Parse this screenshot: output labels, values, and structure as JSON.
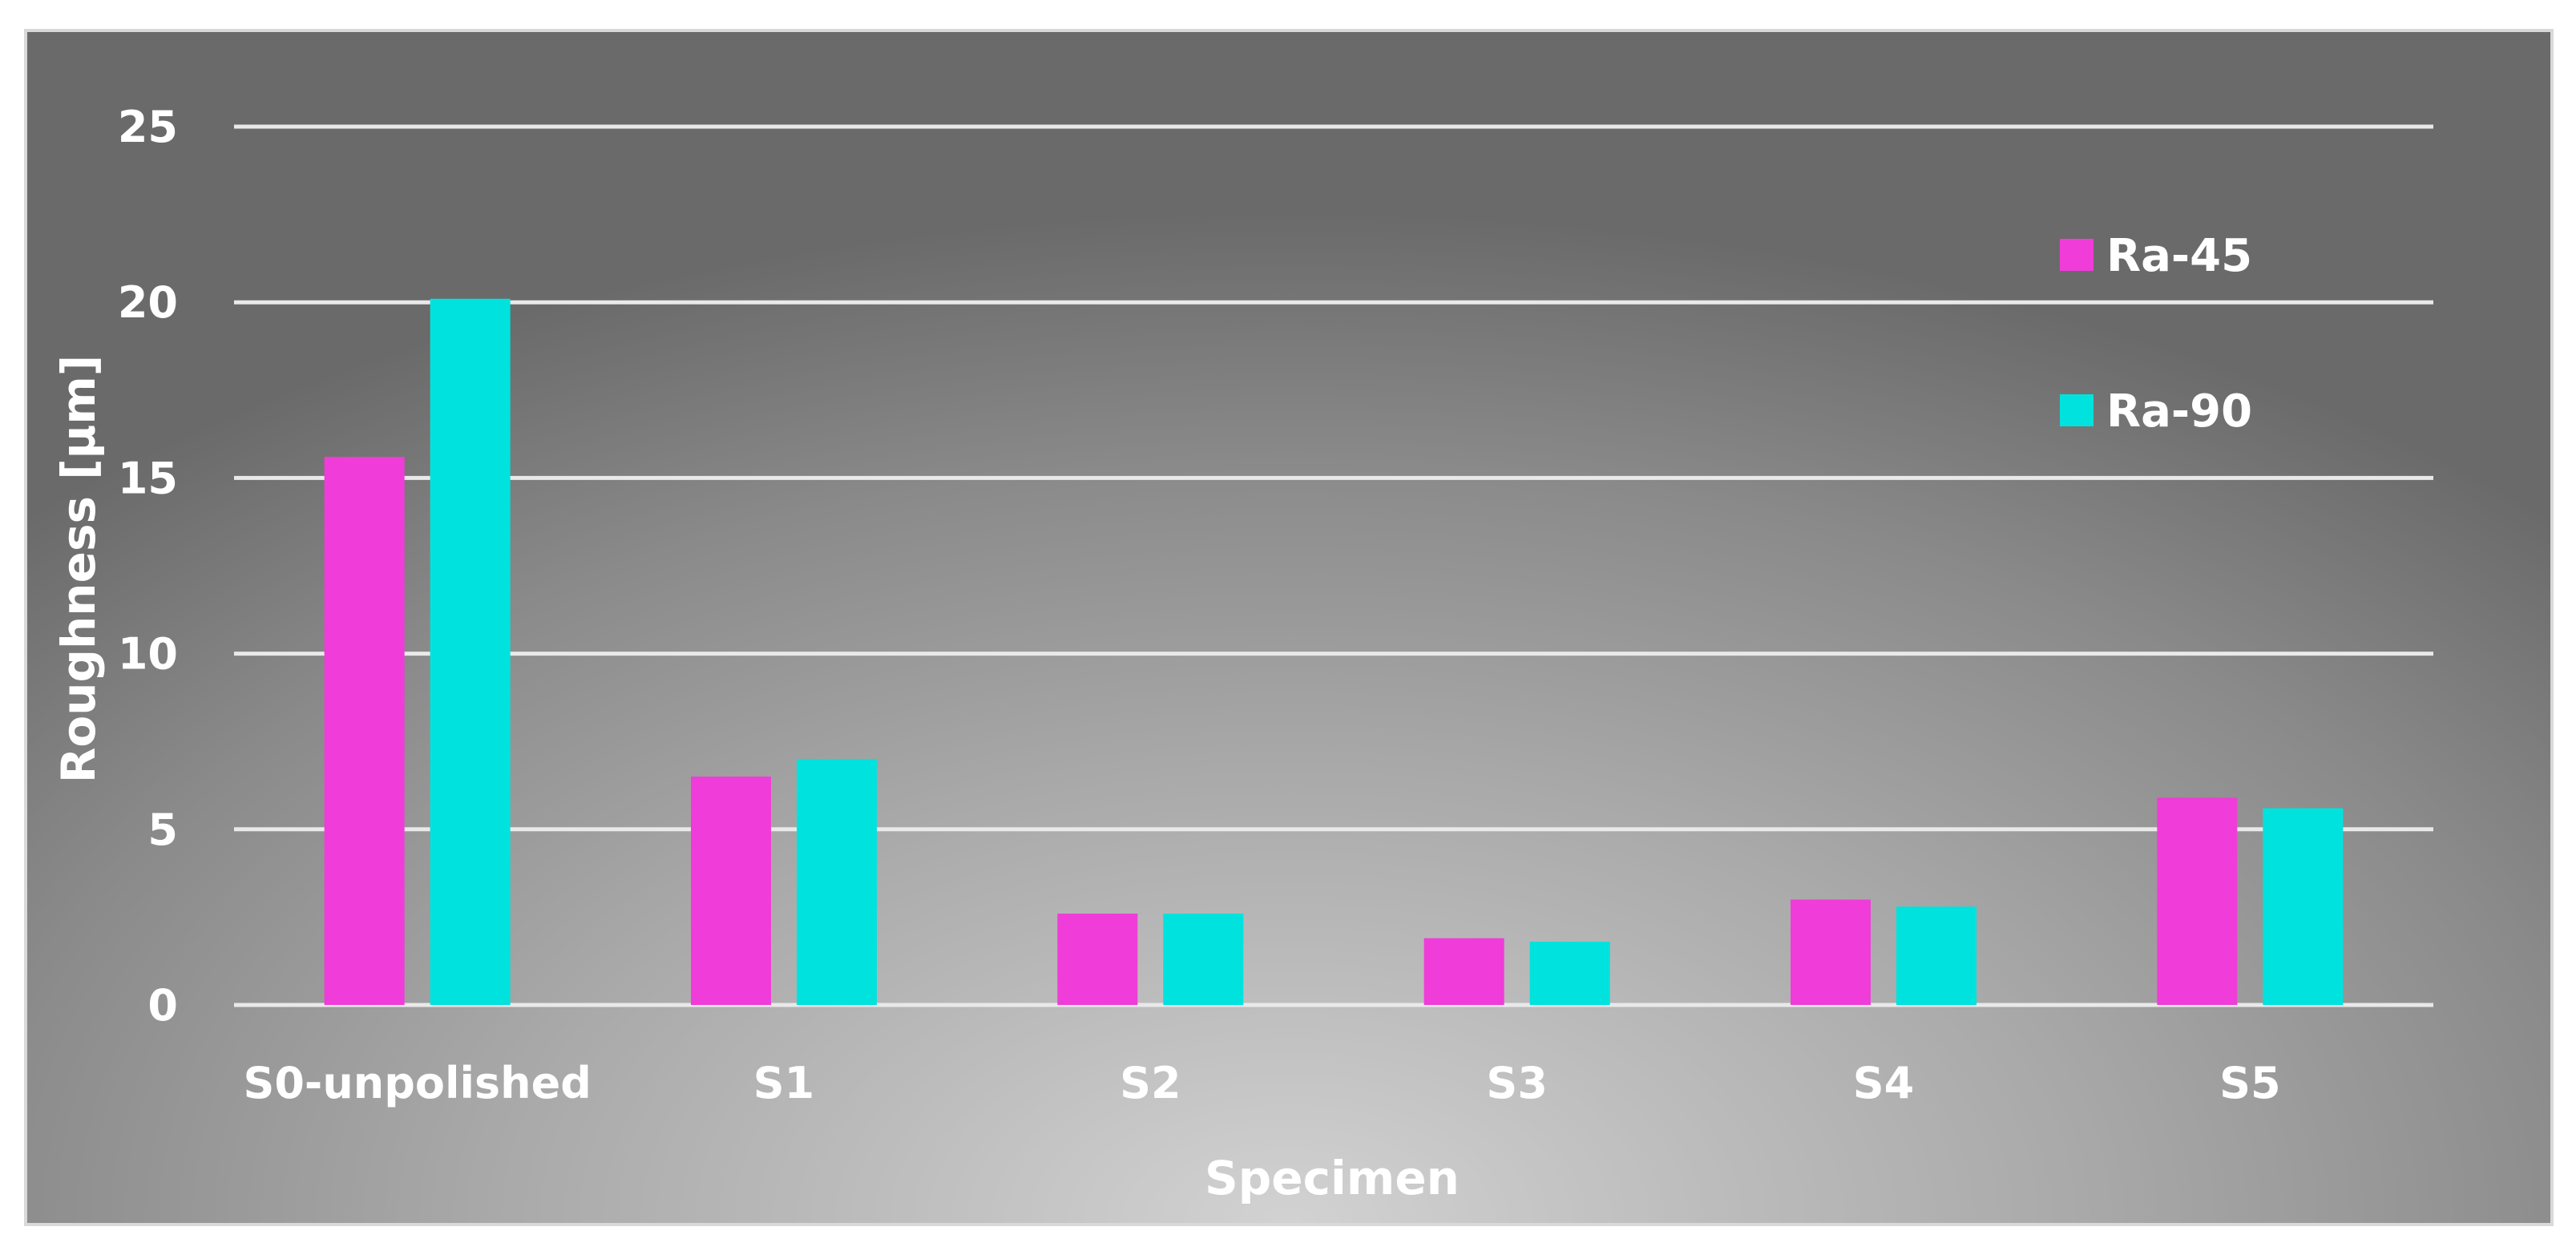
{
  "chart_data": {
    "type": "bar",
    "title": "",
    "xlabel": "Specimen",
    "ylabel": "Roughness [µm]",
    "ylim": [
      0,
      25
    ],
    "yticks": [
      "0",
      "5",
      "10",
      "15",
      "20",
      "25"
    ],
    "categories": [
      "S0-unpolished",
      "S1",
      "S2",
      "S3",
      "S4",
      "S5"
    ],
    "series": [
      {
        "name": "Ra-45",
        "values": [
          15.6,
          6.5,
          2.6,
          1.9,
          3.0,
          5.9
        ]
      },
      {
        "name": "Ra-90",
        "values": [
          20.1,
          7.0,
          2.6,
          1.8,
          2.8,
          5.6
        ]
      }
    ],
    "colors": {
      "Ra-45": "#f03cd8",
      "Ra-90": "#00e2de"
    },
    "grid": true,
    "legend": "top-right"
  }
}
